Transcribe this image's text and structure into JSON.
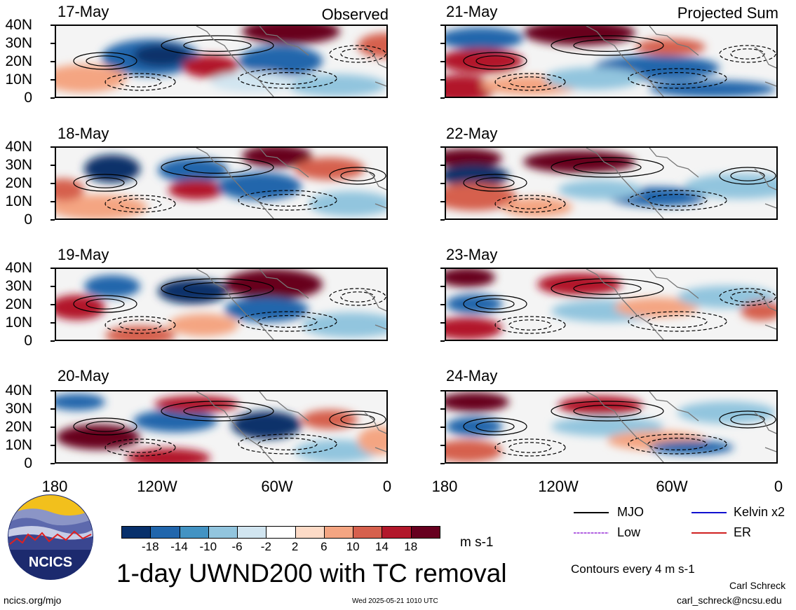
{
  "labels": {
    "observed": "Observed",
    "projected": "Projected Sum"
  },
  "panels_left": [
    {
      "date": "17-May"
    },
    {
      "date": "18-May"
    },
    {
      "date": "19-May"
    },
    {
      "date": "20-May"
    }
  ],
  "panels_right": [
    {
      "date": "21-May"
    },
    {
      "date": "22-May"
    },
    {
      "date": "23-May"
    },
    {
      "date": "24-May"
    }
  ],
  "y_ticks": [
    "40N",
    "30N",
    "20N",
    "10N",
    "0"
  ],
  "x_ticks": [
    "180",
    "120W",
    "60W",
    "0"
  ],
  "legend": {
    "mjo": "MJO",
    "kelvin": "Kelvin x2",
    "low": "Low",
    "er": "ER",
    "colors": {
      "mjo": "#000000",
      "kelvin": "#1010d0",
      "low": "#b060e0",
      "er": "#d02020"
    }
  },
  "colorbar": {
    "labels": [
      "-18",
      "-14",
      "-10",
      "-6",
      "-2",
      "2",
      "6",
      "10",
      "14",
      "18"
    ],
    "colors": [
      "#08306b",
      "#2166ac",
      "#4393c3",
      "#92c5de",
      "#d1e5f0",
      "#ffffff",
      "#fddbc7",
      "#f4a582",
      "#d6604d",
      "#b2182b",
      "#67001f"
    ],
    "unit": "m s-1"
  },
  "title": "1-day UWND200 with TC removal",
  "contours_note": "Contours every 4 m s-1",
  "footer": {
    "url": "ncics.org/mjo",
    "timestamp": "Wed 2025-05-21 1010 UTC",
    "author": "Carl Schreck",
    "email": "carl_schreck@ncsu.edu"
  },
  "logo": {
    "text": "NCICS"
  }
}
